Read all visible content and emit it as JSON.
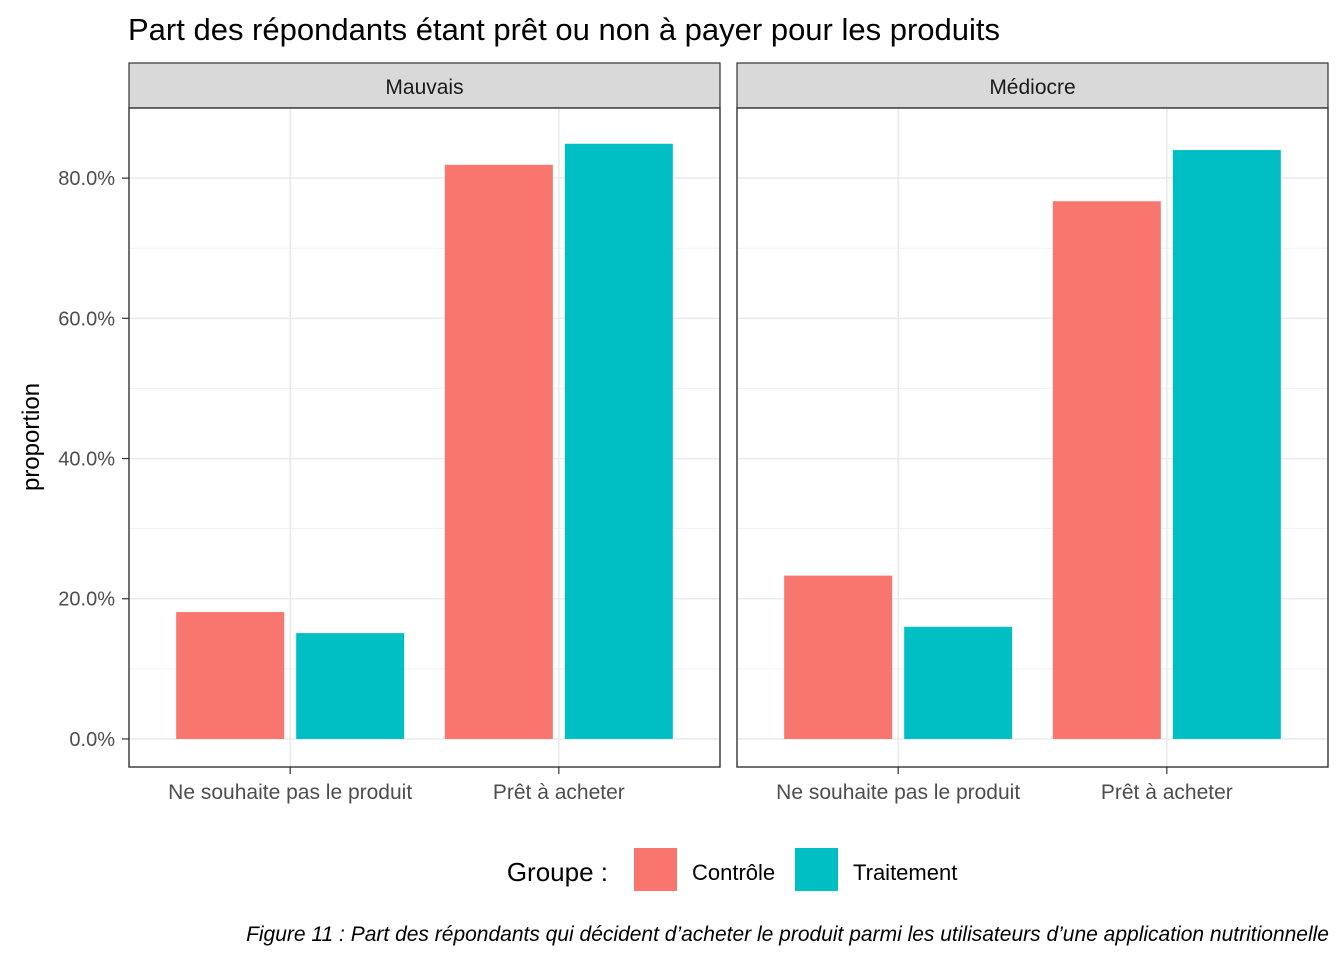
{
  "chart_data": {
    "type": "bar",
    "title": "Part des répondants étant prêt ou non à payer pour les produits",
    "ylabel": "proportion",
    "xlabel": "",
    "ylim": [
      -0.04,
      0.9
    ],
    "yticks": [
      0,
      0.2,
      0.4,
      0.6,
      0.8
    ],
    "ytick_labels": [
      "0.0%",
      "20.0%",
      "40.0%",
      "60.0%",
      "80.0%"
    ],
    "grid": true,
    "categories": [
      "Ne souhaite pas le produit",
      "Prêt à acheter"
    ],
    "facets": [
      {
        "label": "Mauvais",
        "series": [
          {
            "name": "Contrôle",
            "values": [
              0.181,
              0.819
            ]
          },
          {
            "name": "Traitement",
            "values": [
              0.151,
              0.849
            ]
          }
        ]
      },
      {
        "label": "Médiocre",
        "series": [
          {
            "name": "Contrôle",
            "values": [
              0.233,
              0.767
            ]
          },
          {
            "name": "Traitement",
            "values": [
              0.16,
              0.84
            ]
          }
        ]
      }
    ],
    "legend": {
      "title": "Groupe :",
      "position": "bottom",
      "entries": [
        {
          "name": "Contrôle",
          "color": "#F8766D"
        },
        {
          "name": "Traitement",
          "color": "#00BFC4"
        }
      ]
    }
  },
  "caption": "Figure 11 : Part des répondants qui décident d’acheter le produit parmi les utilisateurs d’une application nutritionnelle"
}
